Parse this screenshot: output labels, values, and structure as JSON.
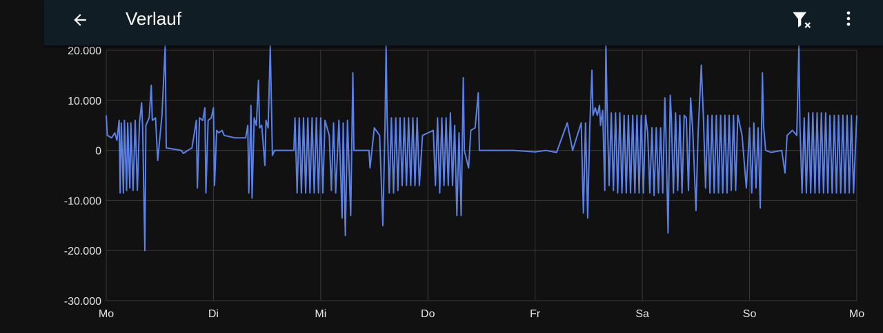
{
  "app_bar": {
    "title": "Verlauf",
    "back_icon": "arrow-left-icon",
    "filter_icon": "filter-remove-icon",
    "menu_icon": "more-vertical-icon"
  },
  "colors": {
    "background": "#111111",
    "app_bar": "#101d24",
    "series": "#5b80e8",
    "grid": "#3a3a3a",
    "text": "#e6e6e6"
  },
  "chart_data": {
    "type": "line",
    "title": "",
    "xlabel": "",
    "ylabel": "",
    "ylim": [
      -30000,
      20000
    ],
    "y_ticks": [
      {
        "value": 20000,
        "label": "20.000"
      },
      {
        "value": 10000,
        "label": "10.000"
      },
      {
        "value": 0,
        "label": "0"
      },
      {
        "value": -10000,
        "label": "-10.000"
      },
      {
        "value": -20000,
        "label": "-20.000"
      },
      {
        "value": -30000,
        "label": "-30.000"
      }
    ],
    "x_range": [
      0,
      7
    ],
    "x_ticks": [
      {
        "value": 0,
        "label": "Mo"
      },
      {
        "value": 1,
        "label": "Di"
      },
      {
        "value": 2,
        "label": "Mi"
      },
      {
        "value": 3,
        "label": "Do"
      },
      {
        "value": 4,
        "label": "Fr"
      },
      {
        "value": 5,
        "label": "Sa"
      },
      {
        "value": 6,
        "label": "So"
      },
      {
        "value": 7,
        "label": "Mo"
      }
    ],
    "grid": true,
    "legend": "none",
    "series": [
      {
        "name": "",
        "points": [
          [
            0.0,
            7000
          ],
          [
            0.01,
            3000
          ],
          [
            0.05,
            2500
          ],
          [
            0.08,
            3500
          ],
          [
            0.1,
            2000
          ],
          [
            0.12,
            6000
          ],
          [
            0.13,
            -8500
          ],
          [
            0.14,
            5500
          ],
          [
            0.16,
            -8500
          ],
          [
            0.17,
            6000
          ],
          [
            0.19,
            -8000
          ],
          [
            0.2,
            5500
          ],
          [
            0.22,
            -7500
          ],
          [
            0.23,
            5500
          ],
          [
            0.25,
            -8000
          ],
          [
            0.27,
            6000
          ],
          [
            0.29,
            -8000
          ],
          [
            0.31,
            5500
          ],
          [
            0.33,
            9500
          ],
          [
            0.34,
            4500
          ],
          [
            0.36,
            -20000
          ],
          [
            0.37,
            5000
          ],
          [
            0.4,
            6500
          ],
          [
            0.42,
            13000
          ],
          [
            0.43,
            6000
          ],
          [
            0.46,
            6500
          ],
          [
            0.48,
            -2000
          ],
          [
            0.52,
            7000
          ],
          [
            0.55,
            21000
          ],
          [
            0.56,
            500
          ],
          [
            0.7,
            0
          ],
          [
            0.72,
            -600
          ],
          [
            0.76,
            0
          ],
          [
            0.8,
            500
          ],
          [
            0.84,
            6000
          ],
          [
            0.85,
            -7500
          ],
          [
            0.87,
            6500
          ],
          [
            0.9,
            6000
          ],
          [
            0.92,
            8500
          ],
          [
            0.93,
            -8500
          ],
          [
            0.95,
            6000
          ],
          [
            0.98,
            6500
          ],
          [
            1.0,
            8500
          ],
          [
            1.01,
            -7000
          ],
          [
            1.03,
            4000
          ],
          [
            1.05,
            3500
          ],
          [
            1.08,
            4000
          ],
          [
            1.1,
            3000
          ],
          [
            1.2,
            2500
          ],
          [
            1.3,
            2500
          ],
          [
            1.32,
            5000
          ],
          [
            1.33,
            -8500
          ],
          [
            1.35,
            9000
          ],
          [
            1.36,
            -9500
          ],
          [
            1.38,
            6500
          ],
          [
            1.4,
            5000
          ],
          [
            1.42,
            14000
          ],
          [
            1.43,
            4500
          ],
          [
            1.45,
            5000
          ],
          [
            1.48,
            -3000
          ],
          [
            1.49,
            6000
          ],
          [
            1.51,
            4500
          ],
          [
            1.53,
            21000
          ],
          [
            1.55,
            -1000
          ],
          [
            1.57,
            0
          ],
          [
            1.7,
            0
          ],
          [
            1.75,
            0
          ],
          [
            1.76,
            6500
          ],
          [
            1.78,
            -8500
          ],
          [
            1.8,
            6500
          ],
          [
            1.82,
            -8500
          ],
          [
            1.84,
            6500
          ],
          [
            1.86,
            -8500
          ],
          [
            1.88,
            6500
          ],
          [
            1.9,
            -8500
          ],
          [
            1.92,
            6500
          ],
          [
            1.94,
            -8500
          ],
          [
            1.96,
            6500
          ],
          [
            1.98,
            -8500
          ],
          [
            2.0,
            6500
          ],
          [
            2.02,
            -8500
          ],
          [
            2.04,
            6000
          ],
          [
            2.08,
            3000
          ],
          [
            2.1,
            -8000
          ],
          [
            2.12,
            5500
          ],
          [
            2.14,
            -8500
          ],
          [
            2.17,
            6000
          ],
          [
            2.2,
            -13500
          ],
          [
            2.21,
            5500
          ],
          [
            2.23,
            -17000
          ],
          [
            2.25,
            6000
          ],
          [
            2.28,
            -13000
          ],
          [
            2.3,
            15500
          ],
          [
            2.31,
            0
          ],
          [
            2.4,
            0
          ],
          [
            2.45,
            0
          ],
          [
            2.46,
            -3500
          ],
          [
            2.5,
            4500
          ],
          [
            2.55,
            3000
          ],
          [
            2.58,
            -15000
          ],
          [
            2.6,
            5000
          ],
          [
            2.61,
            21000
          ],
          [
            2.62,
            6500
          ],
          [
            2.64,
            -8500
          ],
          [
            2.66,
            6500
          ],
          [
            2.68,
            -8500
          ],
          [
            2.7,
            6500
          ],
          [
            2.72,
            -8000
          ],
          [
            2.74,
            6500
          ],
          [
            2.76,
            -7000
          ],
          [
            2.78,
            6500
          ],
          [
            2.8,
            -7000
          ],
          [
            2.82,
            6500
          ],
          [
            2.84,
            -7000
          ],
          [
            2.86,
            6500
          ],
          [
            2.88,
            -7000
          ],
          [
            2.9,
            6500
          ],
          [
            2.92,
            -7000
          ],
          [
            2.95,
            3000
          ],
          [
            3.05,
            4000
          ],
          [
            3.07,
            -7000
          ],
          [
            3.09,
            6500
          ],
          [
            3.11,
            -8500
          ],
          [
            3.13,
            6500
          ],
          [
            3.15,
            -7000
          ],
          [
            3.17,
            6500
          ],
          [
            3.19,
            -7000
          ],
          [
            3.21,
            7500
          ],
          [
            3.23,
            -7000
          ],
          [
            3.25,
            5000
          ],
          [
            3.27,
            -13000
          ],
          [
            3.29,
            3500
          ],
          [
            3.31,
            -13000
          ],
          [
            3.33,
            14500
          ],
          [
            3.34,
            0
          ],
          [
            3.38,
            -3500
          ],
          [
            3.4,
            4000
          ],
          [
            3.44,
            4500
          ],
          [
            3.47,
            11500
          ],
          [
            3.48,
            0
          ],
          [
            3.6,
            0
          ],
          [
            3.8,
            0
          ],
          [
            4.0,
            -300
          ],
          [
            4.1,
            0
          ],
          [
            4.2,
            -400
          ],
          [
            4.3,
            5500
          ],
          [
            4.35,
            0
          ],
          [
            4.43,
            5500
          ],
          [
            4.45,
            -12500
          ],
          [
            4.47,
            5500
          ],
          [
            4.49,
            -13500
          ],
          [
            4.51,
            5000
          ],
          [
            4.53,
            16000
          ],
          [
            4.54,
            7000
          ],
          [
            4.56,
            8500
          ],
          [
            4.58,
            7000
          ],
          [
            4.6,
            9000
          ],
          [
            4.61,
            5000
          ],
          [
            4.63,
            8000
          ],
          [
            4.65,
            -8000
          ],
          [
            4.66,
            22000
          ],
          [
            4.67,
            9500
          ],
          [
            4.69,
            -7000
          ],
          [
            4.71,
            7500
          ],
          [
            4.73,
            -8000
          ],
          [
            4.75,
            7500
          ],
          [
            4.77,
            -8500
          ],
          [
            4.79,
            7500
          ],
          [
            4.81,
            -8500
          ],
          [
            4.83,
            7000
          ],
          [
            4.85,
            -8500
          ],
          [
            4.87,
            7000
          ],
          [
            4.89,
            -8500
          ],
          [
            4.91,
            7000
          ],
          [
            4.93,
            -8500
          ],
          [
            4.95,
            7000
          ],
          [
            4.97,
            -8500
          ],
          [
            4.99,
            7000
          ],
          [
            5.01,
            -8500
          ],
          [
            5.03,
            7000
          ],
          [
            5.05,
            3500
          ],
          [
            5.07,
            -8500
          ],
          [
            5.09,
            4500
          ],
          [
            5.11,
            -9000
          ],
          [
            5.13,
            4500
          ],
          [
            5.15,
            -8500
          ],
          [
            5.17,
            4500
          ],
          [
            5.19,
            -8500
          ],
          [
            5.21,
            10500
          ],
          [
            5.22,
            3500
          ],
          [
            5.24,
            -16500
          ],
          [
            5.26,
            11000
          ],
          [
            5.27,
            7000
          ],
          [
            5.29,
            -8500
          ],
          [
            5.31,
            7500
          ],
          [
            5.33,
            -8000
          ],
          [
            5.35,
            7000
          ],
          [
            5.37,
            -8500
          ],
          [
            5.39,
            7000
          ],
          [
            5.41,
            6500
          ],
          [
            5.43,
            -8000
          ],
          [
            5.45,
            10500
          ],
          [
            5.47,
            4000
          ],
          [
            5.5,
            -12000
          ],
          [
            5.52,
            3500
          ],
          [
            5.55,
            17000
          ],
          [
            5.57,
            6500
          ],
          [
            5.59,
            -7500
          ],
          [
            5.61,
            7000
          ],
          [
            5.63,
            -8500
          ],
          [
            5.65,
            7000
          ],
          [
            5.67,
            -8500
          ],
          [
            5.69,
            7000
          ],
          [
            5.71,
            -8500
          ],
          [
            5.73,
            7000
          ],
          [
            5.75,
            -8500
          ],
          [
            5.77,
            7000
          ],
          [
            5.79,
            -8500
          ],
          [
            5.81,
            7000
          ],
          [
            5.83,
            -8000
          ],
          [
            5.85,
            7000
          ],
          [
            5.87,
            -8000
          ],
          [
            5.89,
            7000
          ],
          [
            5.93,
            3000
          ],
          [
            5.97,
            -7500
          ],
          [
            6.0,
            4500
          ],
          [
            6.02,
            -8500
          ],
          [
            6.04,
            5500
          ],
          [
            6.06,
            -7500
          ],
          [
            6.08,
            4500
          ],
          [
            6.1,
            -11500
          ],
          [
            6.12,
            15500
          ],
          [
            6.13,
            5000
          ],
          [
            6.15,
            0
          ],
          [
            6.2,
            -400
          ],
          [
            6.3,
            0
          ],
          [
            6.33,
            -4500
          ],
          [
            6.35,
            3000
          ],
          [
            6.4,
            4000
          ],
          [
            6.44,
            3000
          ],
          [
            6.46,
            21000
          ],
          [
            6.47,
            5000
          ],
          [
            6.49,
            -8500
          ],
          [
            6.51,
            6500
          ],
          [
            6.53,
            -8500
          ],
          [
            6.55,
            7500
          ],
          [
            6.57,
            -8500
          ],
          [
            6.59,
            7500
          ],
          [
            6.61,
            -8500
          ],
          [
            6.63,
            7500
          ],
          [
            6.65,
            -8500
          ],
          [
            6.67,
            7500
          ],
          [
            6.69,
            -8500
          ],
          [
            6.71,
            7500
          ],
          [
            6.73,
            -8500
          ],
          [
            6.75,
            7000
          ],
          [
            6.77,
            -8500
          ],
          [
            6.79,
            7000
          ],
          [
            6.81,
            -8500
          ],
          [
            6.83,
            7000
          ],
          [
            6.85,
            -8500
          ],
          [
            6.87,
            7000
          ],
          [
            6.89,
            -8500
          ],
          [
            6.91,
            7000
          ],
          [
            6.93,
            -8500
          ],
          [
            6.95,
            7000
          ],
          [
            6.97,
            -8500
          ],
          [
            7.0,
            7000
          ]
        ]
      }
    ]
  }
}
